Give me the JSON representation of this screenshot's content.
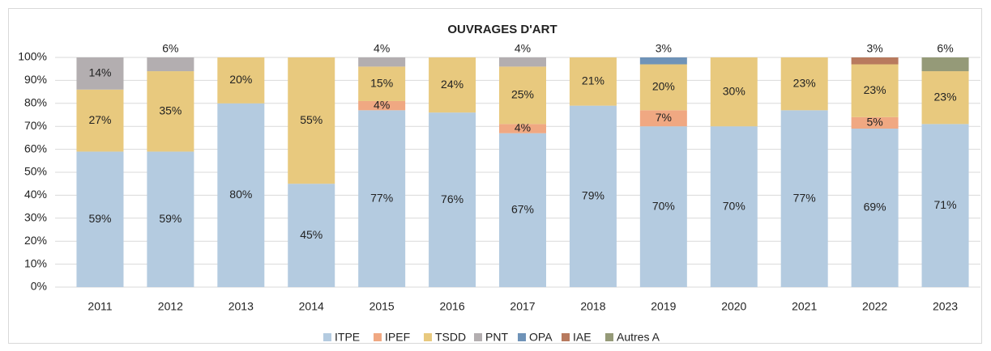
{
  "chart_data": {
    "type": "stacked_bar",
    "title": "OUVRAGES D'ART",
    "categories": [
      "2011",
      "2012",
      "2013",
      "2014",
      "2015",
      "2016",
      "2017",
      "2018",
      "2019",
      "2020",
      "2021",
      "2022",
      "2023"
    ],
    "series": [
      {
        "name": "ITPE",
        "color": "#b4cbe0",
        "values": [
          59,
          59,
          80,
          45,
          77,
          76,
          67,
          79,
          70,
          70,
          77,
          69,
          71
        ],
        "value_labels": [
          "59%",
          "59%",
          "80%",
          "45%",
          "77%",
          "76%",
          "67%",
          "79%",
          "70%",
          "70%",
          "77%",
          "69%",
          "71%"
        ]
      },
      {
        "name": "IPEF",
        "color": "#f0a882",
        "values": [
          null,
          null,
          null,
          null,
          4,
          null,
          4,
          null,
          7,
          null,
          null,
          5,
          null
        ],
        "value_labels": [
          null,
          null,
          null,
          null,
          "4%",
          null,
          "4%",
          null,
          "7%",
          null,
          null,
          "5%",
          null
        ]
      },
      {
        "name": "TSDD",
        "color": "#e8c97e",
        "values": [
          27,
          35,
          20,
          55,
          15,
          24,
          25,
          21,
          20,
          30,
          23,
          23,
          23
        ],
        "value_labels": [
          "27%",
          "35%",
          "20%",
          "55%",
          "15%",
          "24%",
          "25%",
          "21%",
          "20%",
          "30%",
          "23%",
          "23%",
          "23%"
        ]
      },
      {
        "name": "PNT",
        "color": "#b3aeb0",
        "values": [
          14,
          6,
          null,
          null,
          4,
          null,
          4,
          null,
          null,
          null,
          null,
          null,
          null
        ],
        "value_labels": [
          "14%",
          "6%",
          null,
          null,
          "4%",
          null,
          "4%",
          null,
          null,
          null,
          null,
          null,
          null
        ]
      },
      {
        "name": "OPA",
        "color": "#6f93b8",
        "values": [
          null,
          null,
          null,
          null,
          null,
          null,
          null,
          null,
          3,
          null,
          null,
          null,
          null
        ],
        "value_labels": [
          null,
          null,
          null,
          null,
          null,
          null,
          null,
          null,
          "3%",
          null,
          null,
          null,
          null
        ]
      },
      {
        "name": "IAE",
        "color": "#b87a5e",
        "values": [
          null,
          null,
          null,
          null,
          null,
          null,
          null,
          null,
          null,
          null,
          null,
          3,
          null
        ],
        "value_labels": [
          null,
          null,
          null,
          null,
          null,
          null,
          null,
          null,
          null,
          null,
          null,
          "3%",
          null
        ]
      },
      {
        "name": "Autres A",
        "color": "#959a78",
        "values": [
          null,
          null,
          null,
          null,
          null,
          null,
          null,
          null,
          null,
          null,
          null,
          null,
          6
        ],
        "value_labels": [
          null,
          null,
          null,
          null,
          null,
          null,
          null,
          null,
          null,
          null,
          null,
          null,
          "6%"
        ]
      }
    ],
    "ylim": [
      0,
      100
    ],
    "yticks": [
      {
        "value": 0,
        "label": "0%"
      },
      {
        "value": 10,
        "label": "10%"
      },
      {
        "value": 20,
        "label": "20%"
      },
      {
        "value": 30,
        "label": "30%"
      },
      {
        "value": 40,
        "label": "40%"
      },
      {
        "value": 50,
        "label": "50%"
      },
      {
        "value": 60,
        "label": "60%"
      },
      {
        "value": 70,
        "label": "70%"
      },
      {
        "value": 80,
        "label": "80%"
      },
      {
        "value": 90,
        "label": "90%"
      },
      {
        "value": 100,
        "label": "100%"
      }
    ],
    "grid": true,
    "legend": "bottom"
  }
}
